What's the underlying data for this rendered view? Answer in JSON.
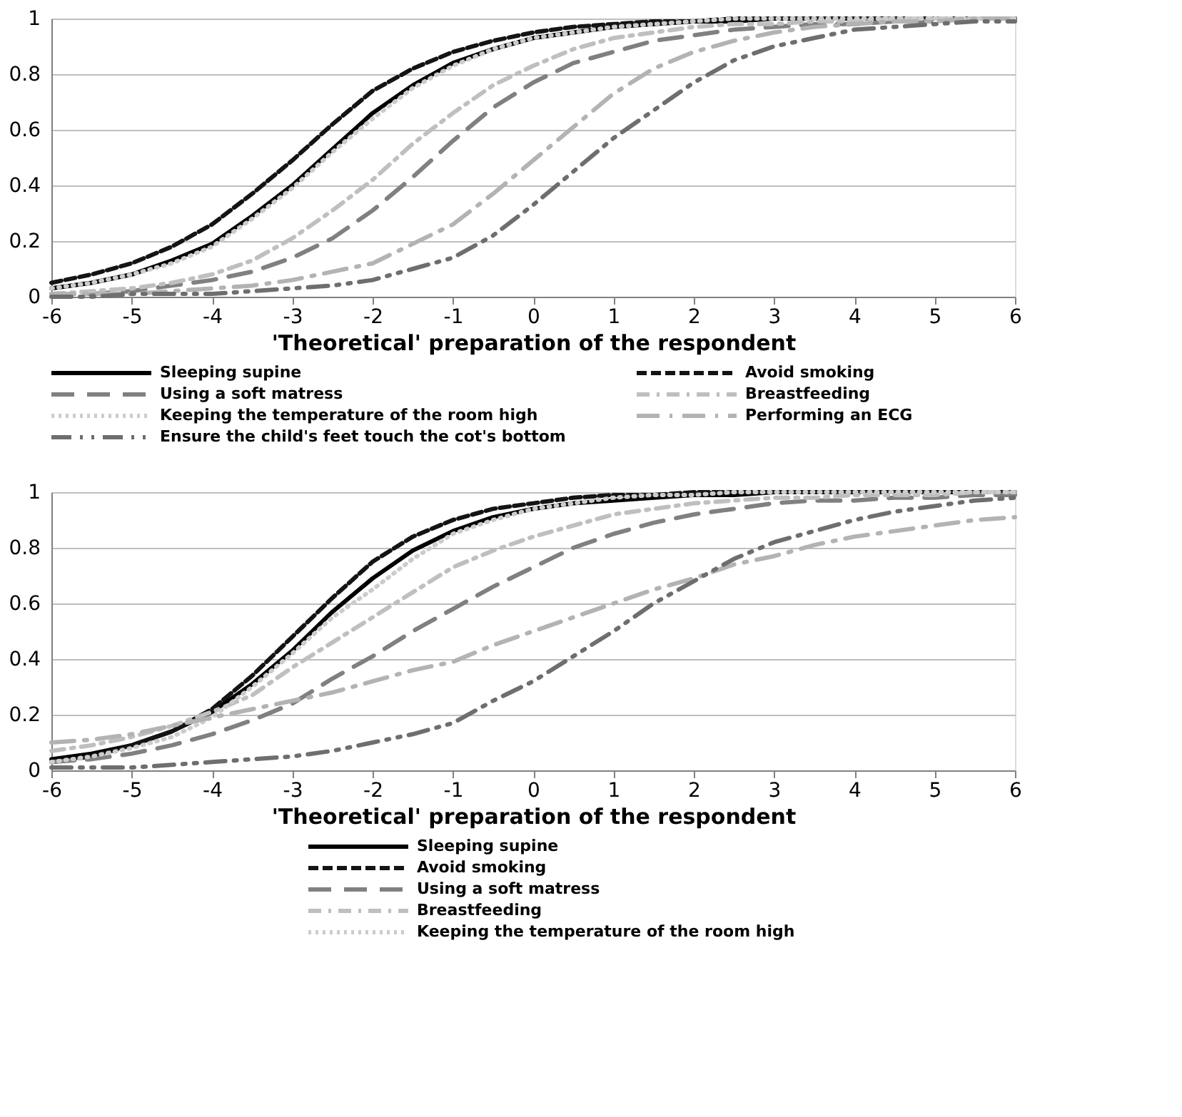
{
  "chart_data": [
    {
      "type": "line",
      "xlabel": "'Theoretical' preparation of the respondent",
      "x": [
        -6,
        -5.5,
        -5,
        -4.5,
        -4,
        -3.5,
        -3,
        -2.5,
        -2,
        -1.5,
        -1,
        -0.5,
        0,
        0.5,
        1,
        1.5,
        2,
        2.5,
        3,
        3.5,
        4,
        4.5,
        5,
        5.5,
        6
      ],
      "xlim": [
        -6,
        6
      ],
      "xticks": [
        -6,
        -5,
        -4,
        -3,
        -2,
        -1,
        0,
        1,
        2,
        3,
        4,
        5,
        6
      ],
      "ylim": [
        0,
        1
      ],
      "yticks": [
        0,
        0.2,
        0.4,
        0.6,
        0.8,
        1
      ],
      "grid": "y",
      "legend": "bottom",
      "marker": "none",
      "series": [
        {
          "name": "Sleeping supine",
          "color": "#000000",
          "line_style": "solid",
          "values": [
            0.03,
            0.05,
            0.08,
            0.13,
            0.19,
            0.29,
            0.4,
            0.53,
            0.66,
            0.76,
            0.84,
            0.89,
            0.93,
            0.95,
            0.97,
            0.98,
            0.99,
            0.99,
            1,
            1,
            1,
            1,
            1,
            1,
            1
          ]
        },
        {
          "name": "Avoid smoking",
          "color": "#141414",
          "line_style": "dashed",
          "values": [
            0.05,
            0.08,
            0.12,
            0.18,
            0.26,
            0.37,
            0.49,
            0.62,
            0.74,
            0.82,
            0.88,
            0.92,
            0.95,
            0.97,
            0.98,
            0.99,
            0.99,
            1,
            1,
            1,
            1,
            1,
            1,
            1,
            1
          ]
        },
        {
          "name": "Using a soft matress",
          "color": "#808080",
          "line_style": "dashed",
          "values": [
            0.01,
            0.01,
            0.02,
            0.04,
            0.06,
            0.09,
            0.14,
            0.21,
            0.31,
            0.43,
            0.56,
            0.68,
            0.77,
            0.84,
            0.88,
            0.92,
            0.94,
            0.96,
            0.97,
            0.98,
            0.98,
            0.99,
            0.99,
            1,
            1
          ]
        },
        {
          "name": "Breastfeeding",
          "color": "#bfbfbf",
          "line_style": "dashed",
          "values": [
            0.01,
            0.02,
            0.03,
            0.05,
            0.08,
            0.13,
            0.21,
            0.31,
            0.42,
            0.55,
            0.66,
            0.76,
            0.83,
            0.89,
            0.93,
            0.95,
            0.97,
            0.98,
            0.98,
            0.99,
            0.99,
            1,
            1,
            1,
            1
          ]
        },
        {
          "name": "Keeping the temperature of the room high",
          "color": "#cccccc",
          "line_style": "dotted",
          "values": [
            0.03,
            0.05,
            0.08,
            0.12,
            0.18,
            0.28,
            0.39,
            0.52,
            0.64,
            0.75,
            0.83,
            0.89,
            0.93,
            0.95,
            0.97,
            0.98,
            0.99,
            1,
            1,
            1,
            1,
            1,
            1,
            1,
            1
          ]
        },
        {
          "name": "Performing an ECG",
          "color": "#b3b3b3",
          "line_style": "dashed",
          "values": [
            0.01,
            0.01,
            0.01,
            0.02,
            0.03,
            0.04,
            0.06,
            0.09,
            0.12,
            0.19,
            0.26,
            0.37,
            0.49,
            0.61,
            0.73,
            0.82,
            0.88,
            0.92,
            0.95,
            0.97,
            0.98,
            0.99,
            0.99,
            1,
            1
          ]
        },
        {
          "name": "Ensure the child's feet touch the cot's bottom",
          "color": "#6e6e6e",
          "line_style": "dashed",
          "values": [
            0,
            0,
            0.01,
            0.01,
            0.01,
            0.02,
            0.03,
            0.04,
            0.06,
            0.1,
            0.14,
            0.22,
            0.33,
            0.45,
            0.57,
            0.67,
            0.77,
            0.85,
            0.9,
            0.93,
            0.96,
            0.97,
            0.98,
            0.99,
            0.99
          ]
        }
      ]
    },
    {
      "type": "line",
      "xlabel": "'Theoretical' preparation of the respondent",
      "x": [
        -6,
        -5.5,
        -5,
        -4.5,
        -4,
        -3.5,
        -3,
        -2.5,
        -2,
        -1.5,
        -1,
        -0.5,
        0,
        0.5,
        1,
        1.5,
        2,
        2.5,
        3,
        3.5,
        4,
        4.5,
        5,
        5.5,
        6
      ],
      "xlim": [
        -6,
        6
      ],
      "xticks": [
        -6,
        -5,
        -4,
        -3,
        -2,
        -1,
        0,
        1,
        2,
        3,
        4,
        5,
        6
      ],
      "ylim": [
        0,
        1
      ],
      "yticks": [
        0,
        0.2,
        0.4,
        0.6,
        0.8,
        1
      ],
      "grid": "y",
      "legend": "bottom",
      "marker": "none",
      "series": [
        {
          "name": "Sleeping supine",
          "color": "#000000",
          "line_style": "solid",
          "values": [
            0.04,
            0.06,
            0.09,
            0.14,
            0.21,
            0.31,
            0.43,
            0.57,
            0.69,
            0.79,
            0.86,
            0.91,
            0.94,
            0.96,
            0.97,
            0.98,
            0.99,
            0.99,
            1,
            1,
            1,
            1,
            1,
            1,
            1
          ]
        },
        {
          "name": "Avoid smoking",
          "color": "#141414",
          "line_style": "dashed",
          "values": [
            0.03,
            0.05,
            0.09,
            0.14,
            0.22,
            0.34,
            0.48,
            0.62,
            0.75,
            0.84,
            0.9,
            0.94,
            0.96,
            0.98,
            0.99,
            0.99,
            1,
            1,
            1,
            1,
            1,
            1,
            1,
            1,
            1
          ]
        },
        {
          "name": "Using a soft matress",
          "color": "#808080",
          "line_style": "dashed",
          "values": [
            0.03,
            0.04,
            0.06,
            0.09,
            0.13,
            0.18,
            0.24,
            0.33,
            0.41,
            0.5,
            0.58,
            0.66,
            0.73,
            0.8,
            0.85,
            0.89,
            0.92,
            0.94,
            0.96,
            0.97,
            0.97,
            0.98,
            0.98,
            0.99,
            0.99
          ]
        },
        {
          "name": "Breastfeeding",
          "color": "#bfbfbf",
          "line_style": "dashed",
          "values": [
            0.07,
            0.09,
            0.12,
            0.16,
            0.21,
            0.27,
            0.37,
            0.46,
            0.55,
            0.64,
            0.73,
            0.79,
            0.84,
            0.88,
            0.92,
            0.94,
            0.96,
            0.97,
            0.98,
            0.98,
            0.99,
            0.99,
            0.99,
            1,
            1
          ]
        },
        {
          "name": "Keeping the temperature of the room high",
          "color": "#cccccc",
          "line_style": "dotted",
          "values": [
            0.03,
            0.05,
            0.08,
            0.12,
            0.19,
            0.3,
            0.42,
            0.55,
            0.65,
            0.76,
            0.85,
            0.9,
            0.94,
            0.96,
            0.98,
            0.99,
            0.99,
            1,
            1,
            1,
            1,
            1,
            1,
            1,
            1
          ]
        },
        {
          "color": "#b3b3b3",
          "line_style": "dashed",
          "values": [
            0.1,
            0.11,
            0.13,
            0.16,
            0.19,
            0.22,
            0.25,
            0.28,
            0.32,
            0.36,
            0.39,
            0.45,
            0.5,
            0.55,
            0.6,
            0.65,
            0.69,
            0.74,
            0.77,
            0.81,
            0.84,
            0.86,
            0.88,
            0.9,
            0.91
          ]
        },
        {
          "color": "#6e6e6e",
          "line_style": "dashed",
          "values": [
            0.01,
            0.01,
            0.01,
            0.02,
            0.03,
            0.04,
            0.05,
            0.07,
            0.1,
            0.13,
            0.17,
            0.25,
            0.32,
            0.41,
            0.5,
            0.6,
            0.68,
            0.76,
            0.82,
            0.86,
            0.9,
            0.93,
            0.95,
            0.97,
            0.98
          ]
        }
      ]
    }
  ]
}
